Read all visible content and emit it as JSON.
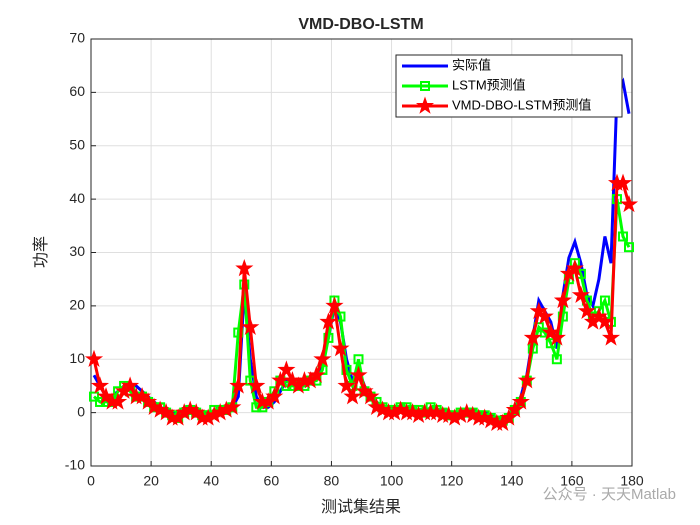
{
  "chart_data": {
    "type": "line",
    "title": "VMD-DBO-LSTM",
    "xlabel": "测试集结果",
    "ylabel": "功率",
    "watermark": "公众号 · 天天Matlab",
    "x": [
      1,
      3,
      5,
      7,
      9,
      11,
      13,
      15,
      17,
      19,
      21,
      23,
      25,
      27,
      29,
      31,
      33,
      35,
      37,
      39,
      41,
      43,
      45,
      47,
      49,
      51,
      53,
      55,
      57,
      59,
      61,
      63,
      65,
      67,
      69,
      71,
      73,
      75,
      77,
      79,
      81,
      83,
      85,
      87,
      89,
      91,
      93,
      95,
      97,
      99,
      101,
      103,
      105,
      107,
      109,
      111,
      113,
      115,
      117,
      119,
      121,
      123,
      125,
      127,
      129,
      131,
      133,
      135,
      137,
      139,
      141,
      143,
      145,
      147,
      149,
      151,
      153,
      155,
      157,
      159,
      161,
      163,
      165,
      167,
      169,
      171,
      173,
      175,
      177,
      179
    ],
    "series": [
      {
        "name": "实际值",
        "color": "#0000ff",
        "marker": "none",
        "values": [
          7,
          5,
          3,
          3,
          4,
          5,
          5,
          5,
          4,
          3,
          2,
          1,
          0.5,
          0,
          -0.5,
          0,
          0.5,
          0.5,
          0,
          -0.5,
          0,
          0,
          0.5,
          1,
          3,
          23,
          10,
          3,
          1,
          1,
          2,
          4,
          6,
          6,
          5,
          5,
          6,
          7,
          9,
          14,
          20,
          17,
          10,
          6,
          8,
          5,
          3,
          2,
          1,
          0.5,
          0.5,
          1,
          0.5,
          0.5,
          0.5,
          0.5,
          0.5,
          0.5,
          0.5,
          0,
          0,
          0,
          0,
          0.5,
          0,
          0,
          -0.5,
          -1,
          -1,
          -0.5,
          1,
          3,
          7,
          14,
          21,
          19,
          17,
          12,
          22,
          29,
          32,
          28,
          22,
          20,
          25,
          33,
          28,
          60,
          62,
          56
        ]
      },
      {
        "name": "LSTM预测值",
        "color": "#00ff00",
        "marker": "square",
        "values": [
          3,
          2,
          2,
          2,
          4,
          5,
          4,
          3,
          3,
          2,
          1,
          1,
          0,
          -0.5,
          -1,
          0,
          0.5,
          0,
          -0.5,
          -0.5,
          0.5,
          0.5,
          0.5,
          1,
          15,
          24,
          6,
          1,
          1,
          2,
          4,
          6,
          5,
          5,
          5,
          5,
          6,
          6,
          8,
          14,
          21,
          18,
          8,
          5,
          10,
          4,
          3,
          2,
          1,
          0.5,
          0.5,
          1,
          1,
          0.5,
          0.5,
          0,
          1,
          0.5,
          0,
          -0.5,
          -0.5,
          0,
          0,
          0,
          -0.5,
          -0.5,
          -1,
          -1.5,
          -1.5,
          -1,
          0.5,
          2,
          6,
          12,
          16,
          15,
          13,
          10,
          18,
          25,
          28,
          26,
          21,
          18,
          19,
          21,
          17,
          40,
          33,
          31
        ]
      },
      {
        "name": "VMD-DBO-LSTM预测值",
        "color": "#ff0000",
        "marker": "star",
        "values": [
          10,
          5,
          3,
          2,
          2,
          4,
          5,
          3,
          3,
          2,
          1,
          0.5,
          0,
          -1,
          -1,
          0,
          0.5,
          0,
          -1,
          -1,
          -0.5,
          0,
          0.5,
          1,
          5,
          27,
          16,
          5,
          2,
          2,
          3,
          6,
          8,
          6,
          5,
          6,
          6,
          7,
          10,
          17,
          20,
          12,
          5,
          3,
          7,
          4,
          3,
          1,
          0.5,
          0,
          0,
          0.5,
          0,
          0,
          -0.5,
          0,
          0,
          0,
          -0.5,
          -0.5,
          -1,
          -0.5,
          0,
          -0.5,
          -1,
          -1,
          -1.5,
          -2,
          -2,
          -1,
          0.5,
          2,
          6,
          14,
          19,
          18,
          15,
          14,
          21,
          26,
          27,
          22,
          19,
          17,
          18,
          17,
          14,
          43,
          43,
          39
        ]
      }
    ],
    "xlim": [
      0,
      180
    ],
    "xticks": [
      0,
      20,
      40,
      60,
      80,
      100,
      120,
      140,
      160,
      180
    ],
    "ylim": [
      -10,
      70
    ],
    "yticks": [
      -10,
      0,
      10,
      20,
      30,
      40,
      50,
      60,
      70
    ],
    "grid": true,
    "legend": "top-right"
  }
}
